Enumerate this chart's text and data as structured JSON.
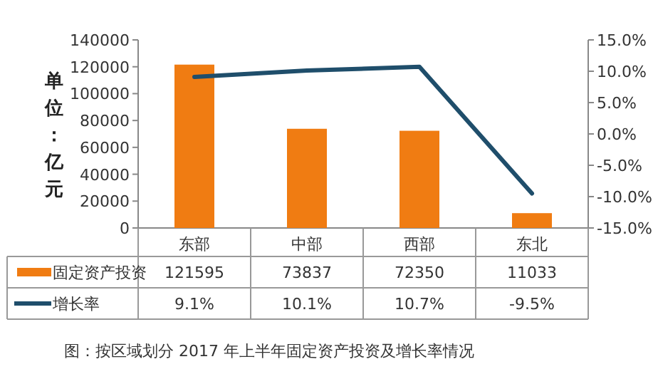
{
  "chart_data": {
    "type": "bar",
    "ylabel": "单位：亿元",
    "categories": [
      "东部",
      "中部",
      "西部",
      "东北"
    ],
    "series": [
      {
        "name": "固定资产投资",
        "color": "#f07c12",
        "values": [
          121595,
          73837,
          72350,
          11033
        ],
        "value_labels": [
          "121595",
          "73837",
          "72350",
          "11033"
        ]
      },
      {
        "name": "增长率",
        "type": "line",
        "axis": "y2",
        "color": "#1f4e6b",
        "values": [
          9.1,
          10.1,
          10.7,
          -9.5
        ],
        "value_labels": [
          "9.1%",
          "10.1%",
          "10.7%",
          "-9.5%"
        ]
      }
    ],
    "ylim": [
      0,
      140000
    ],
    "yticks": [
      0,
      20000,
      40000,
      60000,
      80000,
      100000,
      120000,
      140000
    ],
    "y2lim": [
      -15,
      15
    ],
    "y2ticks": [
      {
        "value": -15,
        "label": "-15.0%"
      },
      {
        "value": -10,
        "label": "-10.0%"
      },
      {
        "value": -5,
        "label": "-5.0%"
      },
      {
        "value": 0,
        "label": "0.0%"
      },
      {
        "value": 5,
        "label": "5.0%"
      },
      {
        "value": 10,
        "label": "10.0%"
      },
      {
        "value": 15,
        "label": "15.0%"
      }
    ],
    "grid": false,
    "legend": "bottom",
    "marker": "none",
    "annotations": [
      "图：按区域划分 2017 年上半年固定资产投资及增长率情况"
    ]
  }
}
